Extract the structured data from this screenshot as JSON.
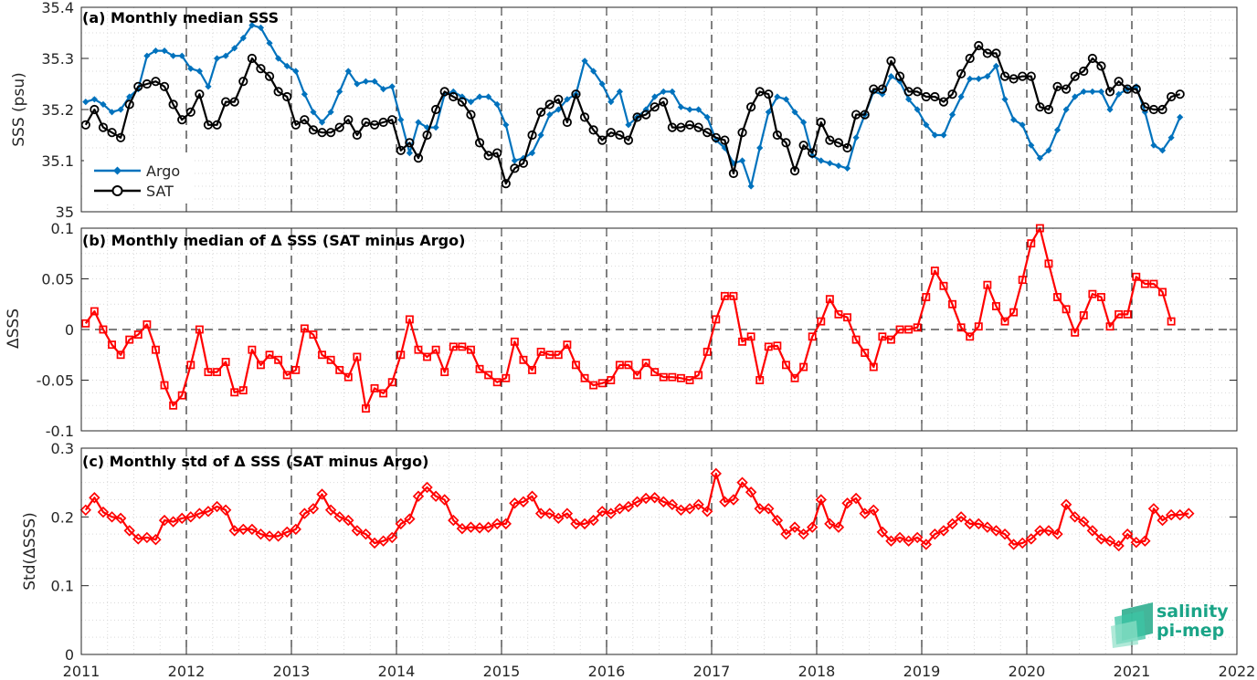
{
  "colors": {
    "argo": "#0072bd",
    "sat": "#000000",
    "delta": "#ff0000",
    "grid_minor": "#d9d9d9",
    "logo_text": "#1aa487",
    "logo_mark": "#3cc4a4"
  },
  "x_axis": {
    "ticks": [
      "2011",
      "2012",
      "2013",
      "2014",
      "2015",
      "2016",
      "2017",
      "2018",
      "2019",
      "2020",
      "2021",
      "2022"
    ],
    "xlim": [
      2011,
      2022
    ]
  },
  "logo": {
    "line1": "salinity",
    "line2": "pi-mep"
  },
  "chart_data": [
    {
      "type": "line",
      "title": "(a) Monthly median SSS",
      "ylabel": "SSS (psu)",
      "ylim": [
        35,
        35.4
      ],
      "yticks": [
        "35",
        "35.1",
        "35.2",
        "35.3",
        "35.4"
      ],
      "grid": "minor dotted",
      "legend": "bottom-left",
      "x_start": "2011-01",
      "x_step": "1 month",
      "series": [
        {
          "name": "Argo",
          "marker": "filled-diamond",
          "values": [
            35.215,
            35.22,
            35.21,
            35.195,
            35.2,
            35.225,
            35.24,
            35.305,
            35.315,
            35.315,
            35.305,
            35.305,
            35.28,
            35.275,
            35.245,
            35.3,
            35.305,
            35.32,
            35.34,
            35.365,
            35.36,
            35.33,
            35.3,
            35.285,
            35.275,
            35.23,
            35.195,
            35.175,
            35.195,
            35.235,
            35.275,
            35.25,
            35.255,
            35.255,
            35.24,
            35.245,
            35.18,
            35.115,
            35.175,
            35.165,
            35.165,
            35.23,
            35.235,
            35.225,
            35.215,
            35.225,
            35.225,
            35.21,
            35.17,
            35.1,
            35.105,
            35.115,
            35.15,
            35.19,
            35.2,
            35.22,
            35.23,
            35.295,
            35.275,
            35.25,
            35.215,
            35.235,
            35.17,
            35.185,
            35.2,
            35.225,
            35.235,
            35.235,
            35.205,
            35.2,
            35.2,
            35.185,
            35.14,
            35.125,
            35.095,
            35.1,
            35.05,
            35.125,
            35.195,
            35.225,
            35.22,
            35.195,
            35.175,
            35.11,
            35.1,
            35.095,
            35.09,
            35.085,
            35.145,
            35.19,
            35.235,
            35.23,
            35.265,
            35.255,
            35.22,
            35.2,
            35.17,
            35.15,
            35.15,
            35.19,
            35.225,
            35.26,
            35.26,
            35.265,
            35.285,
            35.22,
            35.18,
            35.17,
            35.13,
            35.105,
            35.12,
            35.16,
            35.2,
            35.225,
            35.235,
            35.235,
            35.235,
            35.2,
            35.23,
            35.24,
            35.245,
            35.195,
            35.13,
            35.12,
            35.145,
            35.185
          ]
        },
        {
          "name": "SAT",
          "marker": "open-circle",
          "values": [
            35.17,
            35.2,
            35.165,
            35.155,
            35.145,
            35.21,
            35.245,
            35.25,
            35.255,
            35.245,
            35.21,
            35.18,
            35.195,
            35.23,
            35.17,
            35.17,
            35.215,
            35.215,
            35.255,
            35.3,
            35.28,
            35.265,
            35.235,
            35.225,
            35.17,
            35.18,
            35.16,
            35.155,
            35.155,
            35.165,
            35.18,
            35.15,
            35.175,
            35.17,
            35.175,
            35.18,
            35.12,
            35.135,
            35.105,
            35.15,
            35.2,
            35.235,
            35.225,
            35.215,
            35.19,
            35.135,
            35.11,
            35.115,
            35.055,
            35.085,
            35.095,
            35.15,
            35.195,
            35.21,
            35.22,
            35.175,
            35.23,
            35.185,
            35.16,
            35.14,
            35.155,
            35.15,
            35.14,
            35.185,
            35.19,
            35.205,
            35.215,
            35.165,
            35.165,
            35.17,
            35.165,
            35.155,
            35.145,
            35.14,
            35.075,
            35.155,
            35.205,
            35.235,
            35.23,
            35.15,
            35.135,
            35.08,
            35.13,
            35.115,
            35.175,
            35.14,
            35.135,
            35.125,
            35.19,
            35.19,
            35.24,
            35.24,
            35.295,
            35.265,
            35.235,
            35.235,
            35.225,
            35.225,
            35.215,
            35.23,
            35.27,
            35.3,
            35.325,
            35.31,
            35.31,
            35.265,
            35.26,
            35.265,
            35.265,
            35.205,
            35.2,
            35.245,
            35.24,
            35.265,
            35.275,
            35.3,
            35.285,
            35.235,
            35.255,
            35.24,
            35.24,
            35.205,
            35.2,
            35.2,
            35.225,
            35.23
          ]
        }
      ]
    },
    {
      "type": "line",
      "title": "(b) Monthly median of Δ SSS (SAT minus Argo)",
      "ylabel": "ΔSSS",
      "ylim": [
        -0.1,
        0.1
      ],
      "yticks": [
        "-0.1",
        "-0.05",
        "0",
        "0.05",
        "0.1"
      ],
      "zero_line": "dashed",
      "grid": "minor dotted",
      "x_start": "2011-01",
      "x_step": "1 month",
      "series": [
        {
          "marker": "open-square",
          "values": [
            0.006,
            0.018,
            0.0,
            -0.015,
            -0.025,
            -0.01,
            -0.005,
            0.005,
            -0.02,
            -0.055,
            -0.075,
            -0.065,
            -0.035,
            0.0,
            -0.042,
            -0.042,
            -0.032,
            -0.062,
            -0.06,
            -0.02,
            -0.035,
            -0.025,
            -0.03,
            -0.045,
            -0.04,
            0.001,
            -0.005,
            -0.025,
            -0.03,
            -0.04,
            -0.047,
            -0.027,
            -0.078,
            -0.058,
            -0.063,
            -0.052,
            -0.025,
            0.01,
            -0.02,
            -0.027,
            -0.02,
            -0.042,
            -0.017,
            -0.017,
            -0.02,
            -0.039,
            -0.045,
            -0.052,
            -0.048,
            -0.012,
            -0.03,
            -0.04,
            -0.022,
            -0.025,
            -0.025,
            -0.015,
            -0.035,
            -0.048,
            -0.055,
            -0.053,
            -0.05,
            -0.035,
            -0.035,
            -0.045,
            -0.033,
            -0.042,
            -0.047,
            -0.047,
            -0.048,
            -0.05,
            -0.045,
            -0.022,
            0.01,
            0.033,
            0.033,
            -0.012,
            -0.007,
            -0.05,
            -0.017,
            -0.016,
            -0.035,
            -0.048,
            -0.037,
            -0.007,
            0.008,
            0.03,
            0.015,
            0.012,
            -0.01,
            -0.023,
            -0.037,
            -0.007,
            -0.01,
            0.0,
            0.0,
            0.002,
            0.032,
            0.058,
            0.043,
            0.025,
            0.002,
            -0.007,
            0.003,
            0.044,
            0.023,
            0.008,
            0.017,
            0.049,
            0.085,
            0.1,
            0.065,
            0.032,
            0.02,
            -0.003,
            0.014,
            0.035,
            0.032,
            0.003,
            0.015,
            0.015,
            0.052,
            0.045,
            0.045,
            0.037,
            0.008
          ]
        }
      ]
    },
    {
      "type": "line",
      "title": "(c) Monthly std of Δ SSS (SAT minus Argo)",
      "ylabel": "Std(ΔSSS)",
      "ylim": [
        0,
        0.3
      ],
      "yticks": [
        "0",
        "0.1",
        "0.2",
        "0.3"
      ],
      "grid": "minor dotted",
      "x_start": "2011-01",
      "x_step": "1 month",
      "series": [
        {
          "marker": "open-diamond",
          "values": [
            0.21,
            0.228,
            0.207,
            0.2,
            0.198,
            0.18,
            0.168,
            0.17,
            0.167,
            0.195,
            0.193,
            0.198,
            0.2,
            0.205,
            0.208,
            0.215,
            0.21,
            0.18,
            0.182,
            0.182,
            0.175,
            0.172,
            0.172,
            0.178,
            0.182,
            0.205,
            0.212,
            0.233,
            0.21,
            0.2,
            0.195,
            0.18,
            0.175,
            0.162,
            0.165,
            0.17,
            0.19,
            0.197,
            0.23,
            0.243,
            0.23,
            0.225,
            0.195,
            0.183,
            0.185,
            0.184,
            0.185,
            0.19,
            0.19,
            0.22,
            0.222,
            0.23,
            0.205,
            0.205,
            0.198,
            0.205,
            0.19,
            0.19,
            0.195,
            0.208,
            0.205,
            0.212,
            0.215,
            0.222,
            0.227,
            0.228,
            0.222,
            0.218,
            0.21,
            0.212,
            0.218,
            0.208,
            0.263,
            0.222,
            0.225,
            0.25,
            0.236,
            0.212,
            0.212,
            0.195,
            0.175,
            0.185,
            0.175,
            0.185,
            0.225,
            0.19,
            0.185,
            0.22,
            0.227,
            0.205,
            0.21,
            0.178,
            0.165,
            0.17,
            0.165,
            0.17,
            0.16,
            0.175,
            0.18,
            0.19,
            0.2,
            0.19,
            0.19,
            0.185,
            0.18,
            0.175,
            0.16,
            0.162,
            0.168,
            0.18,
            0.18,
            0.175,
            0.218,
            0.2,
            0.193,
            0.18,
            0.168,
            0.165,
            0.158,
            0.175,
            0.163,
            0.165,
            0.212,
            0.195,
            0.203,
            0.203,
            0.205
          ]
        }
      ]
    }
  ]
}
